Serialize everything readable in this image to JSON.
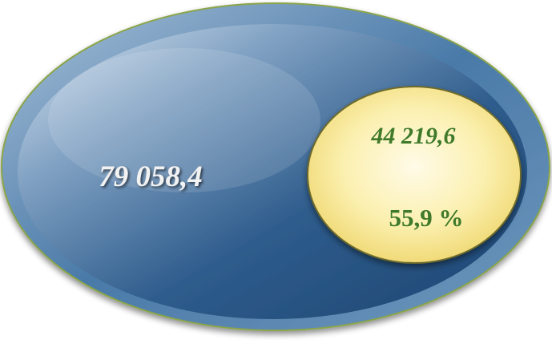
{
  "diagram": {
    "outer": {
      "value": "79 058,4",
      "text_color": "#f2f2f2",
      "fill_light": "#c5d6e6",
      "fill_dark": "#214c79",
      "rim_color": "#5e86ab",
      "border_color": "#8aa54a"
    },
    "inner": {
      "value": "44 219,6",
      "percent": "55,9 %",
      "share_percent": 55.9,
      "text_color": "#3f7a2a",
      "fill_light": "#fffde0",
      "fill_dark": "#f3dc78",
      "border_color": "#6e6a2b"
    }
  }
}
